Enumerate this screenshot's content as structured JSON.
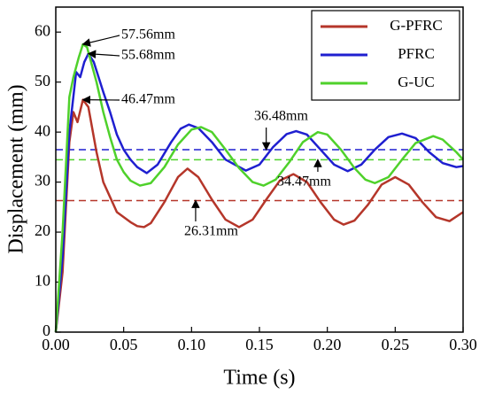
{
  "chart_data": {
    "type": "line",
    "xlabel": "Time (s)",
    "ylabel": "Displacement (mm)",
    "xlim": [
      0,
      0.3
    ],
    "ylim": [
      0,
      65
    ],
    "xticks": [
      {
        "value": 0,
        "label": "0.00"
      },
      0.05,
      {
        "value": 0.1,
        "label": "0.10"
      },
      0.15,
      {
        "value": 0.2,
        "label": "0.20"
      },
      0.25,
      {
        "value": 0.3,
        "label": "0.30"
      }
    ],
    "yticks": [
      0,
      10,
      20,
      30,
      40,
      50,
      60
    ],
    "legend": "upper right",
    "series": [
      {
        "name": "G-PFRC",
        "color": "#b5362a",
        "x": [
          0,
          0.005,
          0.01,
          0.013,
          0.016,
          0.02,
          0.024,
          0.03,
          0.035,
          0.04,
          0.045,
          0.05,
          0.055,
          0.06,
          0.065,
          0.07,
          0.08,
          0.09,
          0.097,
          0.105,
          0.115,
          0.125,
          0.135,
          0.145,
          0.155,
          0.165,
          0.175,
          0.185,
          0.195,
          0.205,
          0.212,
          0.22,
          0.23,
          0.24,
          0.25,
          0.26,
          0.27,
          0.28,
          0.29,
          0.3
        ],
        "values": [
          0,
          12,
          38,
          44,
          42,
          46.47,
          45,
          36,
          30,
          27,
          24,
          23,
          22,
          21.2,
          21,
          21.8,
          26,
          31,
          32.7,
          31,
          26.5,
          22.5,
          21,
          22.5,
          26.5,
          30.3,
          31.6,
          30,
          26,
          22.5,
          21.5,
          22.3,
          25.5,
          29.5,
          31,
          29.5,
          26,
          23,
          22.2,
          24
        ]
      },
      {
        "name": "PFRC",
        "color": "#1f1fd0",
        "x": [
          0,
          0.005,
          0.01,
          0.015,
          0.018,
          0.021,
          0.024,
          0.028,
          0.035,
          0.04,
          0.045,
          0.05,
          0.055,
          0.06,
          0.067,
          0.075,
          0.085,
          0.092,
          0.098,
          0.105,
          0.115,
          0.125,
          0.14,
          0.15,
          0.16,
          0.17,
          0.177,
          0.185,
          0.195,
          0.205,
          0.215,
          0.225,
          0.235,
          0.245,
          0.255,
          0.265,
          0.275,
          0.285,
          0.295,
          0.3
        ],
        "values": [
          0,
          15,
          40,
          52,
          51,
          54,
          55.68,
          54,
          48,
          44,
          39.5,
          36.5,
          34.5,
          33,
          31.8,
          33.5,
          38,
          40.7,
          41.5,
          40.8,
          38,
          34.5,
          32.3,
          33.5,
          37,
          39.6,
          40.2,
          39.5,
          36.5,
          33.5,
          32.2,
          33.5,
          36.5,
          39,
          39.7,
          38.8,
          36,
          33.8,
          33,
          33.2
        ]
      },
      {
        "name": "G-UC",
        "color": "#4fd12b",
        "x": [
          0,
          0.005,
          0.01,
          0.013,
          0.017,
          0.02,
          0.023,
          0.027,
          0.03,
          0.035,
          0.04,
          0.045,
          0.05,
          0.055,
          0.062,
          0.07,
          0.08,
          0.09,
          0.1,
          0.107,
          0.115,
          0.125,
          0.135,
          0.145,
          0.153,
          0.162,
          0.172,
          0.182,
          0.193,
          0.2,
          0.21,
          0.22,
          0.228,
          0.235,
          0.245,
          0.255,
          0.265,
          0.278,
          0.285,
          0.295,
          0.3
        ],
        "values": [
          0,
          20,
          47,
          51,
          55,
          57.56,
          57,
          53,
          50,
          44,
          39,
          34.5,
          32,
          30.3,
          29.3,
          29.8,
          33,
          37.5,
          40.5,
          41,
          40,
          36.5,
          32.8,
          30,
          29.3,
          30.5,
          34,
          38,
          40,
          39.5,
          36.5,
          32.8,
          30.5,
          29.8,
          31,
          34.5,
          37.8,
          39.2,
          38.5,
          36,
          34.5
        ]
      }
    ],
    "reference_lines": [
      {
        "value": 36.48,
        "color": "#1f1fd0"
      },
      {
        "value": 34.47,
        "color": "#4fd12b"
      },
      {
        "value": 26.31,
        "color": "#b5362a"
      }
    ],
    "annotations": [
      {
        "label": "57.56mm",
        "x": 0.02,
        "y": 57.56
      },
      {
        "label": "55.68mm",
        "x": 0.024,
        "y": 55.68
      },
      {
        "label": "46.47mm",
        "x": 0.02,
        "y": 46.47
      },
      {
        "label": "36.48mm",
        "x": 0.155,
        "y": 36.48
      },
      {
        "label": "34.47mm",
        "x": 0.193,
        "y": 34.47
      },
      {
        "label": "26.31mm",
        "x": 0.103,
        "y": 26.31
      }
    ]
  }
}
